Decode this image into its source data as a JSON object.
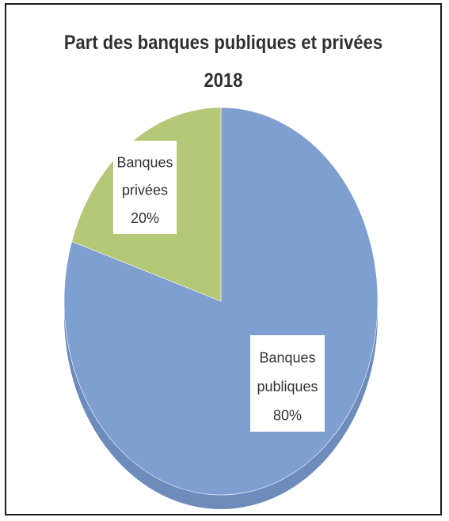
{
  "chart": {
    "title_line1": "Part des banques publiques et privées",
    "title_line2": "2018"
  },
  "chart_data": {
    "type": "pie",
    "title": "Part des banques publiques et privées 2018",
    "slices": [
      {
        "label_lines": [
          "Banques",
          "publiques",
          "80%"
        ],
        "name": "Banques publiques",
        "value": 80,
        "color": "#7f9fd0",
        "side_color": "#6d8cbc"
      },
      {
        "label_lines": [
          "Banques",
          "privées",
          "20%"
        ],
        "name": "Banques privées",
        "value": 20,
        "color": "#b5c878",
        "side_color": "#9fb066"
      }
    ],
    "legend": "none",
    "style": "3d-pie"
  }
}
